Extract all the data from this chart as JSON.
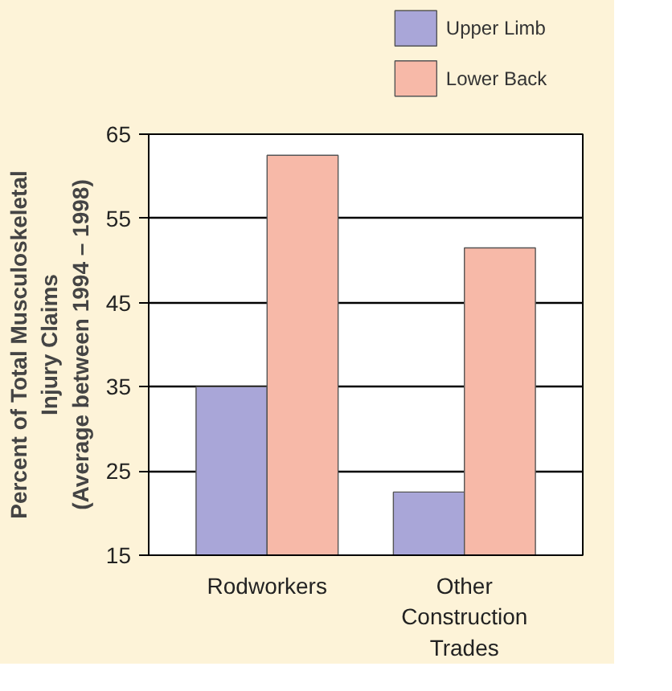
{
  "chart_data": {
    "type": "bar",
    "ylabel": "Percent of Total Musculoskeletal\nInjury Claims\n(Average between 1994 – 1998)",
    "categories": [
      "Rodworkers",
      "Other Construction Trades"
    ],
    "series": [
      {
        "name": "Upper Limb",
        "color": "#a9a6d8",
        "values": [
          35,
          22.5
        ]
      },
      {
        "name": "Lower Back",
        "color": "#f7b9a8",
        "values": [
          62.5,
          51.5
        ]
      }
    ],
    "ylim": [
      15,
      65
    ],
    "yticks": [
      15,
      25,
      35,
      45,
      55,
      65
    ],
    "grid": "y",
    "legend": "top right"
  }
}
